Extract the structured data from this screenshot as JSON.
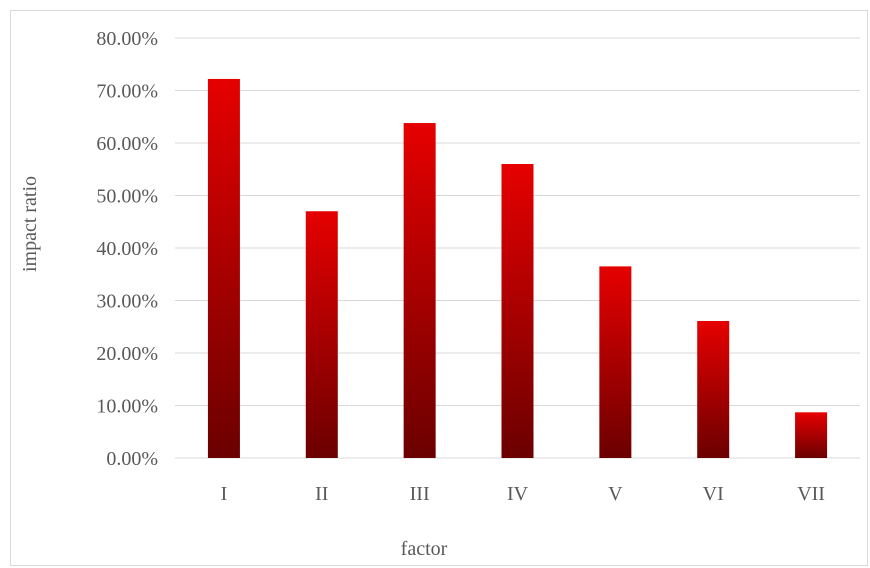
{
  "chart_data": {
    "type": "bar",
    "title": "",
    "xlabel": "factor",
    "ylabel": "impact ratio",
    "categories": [
      "I",
      "II",
      "III",
      "IV",
      "V",
      "VI",
      "VII"
    ],
    "values": [
      72.2,
      47.0,
      63.8,
      56.0,
      36.5,
      26.1,
      8.7
    ],
    "ylim": [
      0,
      80
    ],
    "yticks": [
      0,
      10,
      20,
      30,
      40,
      50,
      60,
      70,
      80
    ],
    "ytick_format": "0.00%",
    "grid": true,
    "legend": "none",
    "colors": {
      "bar_top": "#e60000",
      "bar_bottom": "#6b0000",
      "grid": "#d9d9d9",
      "text": "#595959"
    }
  }
}
